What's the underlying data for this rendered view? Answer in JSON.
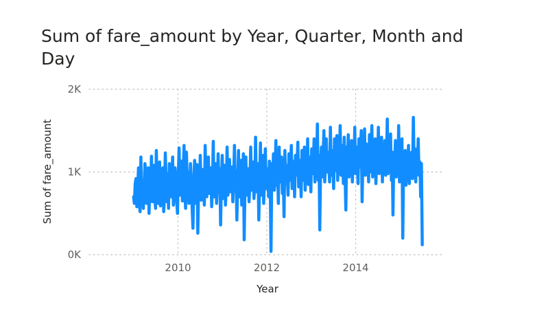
{
  "chart_data": {
    "type": "line",
    "title": "Sum of fare_amount by Year, Quarter, Month and Day",
    "xlabel": "Year",
    "ylabel": "Sum of fare_amount",
    "x_start": 2009.0,
    "x_end": 2015.5,
    "xlim": [
      2008.0,
      2016.0
    ],
    "ylim": [
      0,
      2000
    ],
    "x_ticks": [
      {
        "value": 2010,
        "label": "2010"
      },
      {
        "value": 2012,
        "label": "2012"
      },
      {
        "value": 2014,
        "label": "2014"
      }
    ],
    "y_ticks": [
      {
        "value": 0,
        "label": "0K"
      },
      {
        "value": 1000,
        "label": "1K"
      },
      {
        "value": 2000,
        "label": "2K"
      }
    ],
    "grid": true,
    "legend": "none",
    "series": [
      {
        "color": "#118dff",
        "values": [
          700,
          620,
          860,
          920,
          580,
          750,
          1050,
          640,
          520,
          1180,
          680,
          900,
          560,
          800,
          1100,
          980,
          620,
          720,
          1050,
          500,
          880,
          760,
          1190,
          640,
          940,
          1080,
          700,
          560,
          1260,
          820,
          620,
          980,
          1120,
          590,
          760,
          890,
          1050,
          520,
          700,
          1230,
          860,
          640,
          980,
          560,
          1100,
          820,
          700,
          940,
          1180,
          600,
          760,
          1050,
          880,
          640,
          500,
          1000,
          1290,
          720,
          860,
          1130,
          650,
          980,
          1320,
          760,
          560,
          1240,
          880,
          1000,
          620,
          720,
          1100,
          890,
          560,
          320,
          820,
          1140,
          980,
          620,
          1090,
          260,
          880,
          720,
          1200,
          660,
          960,
          1030,
          800,
          600,
          1320,
          880,
          700,
          1080,
          1180,
          740,
          920,
          1050,
          580,
          820,
          1370,
          700,
          940,
          1100,
          620,
          860,
          1220,
          760,
          1040,
          360,
          880,
          1200,
          680,
          960,
          1080,
          600,
          840,
          1300,
          720,
          980,
          1150,
          760,
          880,
          1060,
          640,
          910,
          1320,
          780,
          1000,
          420,
          860,
          1260,
          700,
          940,
          1140,
          600,
          880,
          1220,
          180,
          860,
          1180,
          720,
          980,
          1040,
          640,
          880,
          1300,
          780,
          920,
          1120,
          680,
          840,
          1420,
          760,
          980,
          1100,
          420,
          880,
          1350,
          720,
          1000,
          1200,
          620,
          900,
          1280,
          800,
          1040,
          960,
          700,
          1130,
          880,
          40,
          1100,
          940,
          1220,
          780,
          960,
          1380,
          840,
          1060,
          620,
          1300,
          880,
          1000,
          1180,
          740,
          980,
          460,
          1260,
          860,
          1080,
          960,
          720,
          1220,
          900,
          1040,
          1320,
          800,
          980,
          1130,
          700,
          1200,
          960,
          1080,
          1360,
          820,
          1000,
          1140,
          700,
          1260,
          900,
          1050,
          1300,
          780,
          1120,
          960,
          1400,
          850,
          1040,
          1180,
          760,
          1280,
          980,
          1060,
          1400,
          880,
          1150,
          1000,
          1580,
          900,
          1200,
          300,
          1080,
          1300,
          940,
          1180,
          1500,
          880,
          1100,
          1400,
          1000,
          1240,
          1100,
          880,
          1540,
          960,
          1260,
          1100,
          800,
          1400,
          1020,
          1200,
          1440,
          900,
          1280,
          1060,
          1560,
          960,
          1180,
          1320,
          860,
          1420,
          1000,
          540,
          1300,
          1100,
          1450,
          940,
          1260,
          1120,
          1380,
          880,
          1220,
          1000,
          1540,
          980,
          1300,
          1140,
          860,
          1400,
          1060,
          1260,
          1500,
          640,
          1200,
          1080,
          1520,
          960,
          1340,
          1100,
          1300,
          880,
          1450,
          1000,
          1240,
          1560,
          940,
          1280,
          1100,
          1400,
          860,
          1200,
          1060,
          1540,
          980,
          1300,
          1140,
          1420,
          880,
          1260,
          1060,
          1380,
          960,
          1180,
          1640,
          980,
          1320,
          1080,
          1460,
          900,
          1240,
          480,
          1200,
          1100,
          1380,
          940,
          1280,
          1060,
          1560,
          880,
          1200,
          1020,
          1400,
          200,
          1140,
          1000,
          1260,
          840,
          1180,
          960,
          1320,
          860,
          1100,
          1000,
          1240,
          920,
          1660,
          1060,
          1280,
          880,
          1160,
          1040,
          1400,
          960,
          1120,
          700,
          1100,
          120
        ]
      }
    ]
  }
}
